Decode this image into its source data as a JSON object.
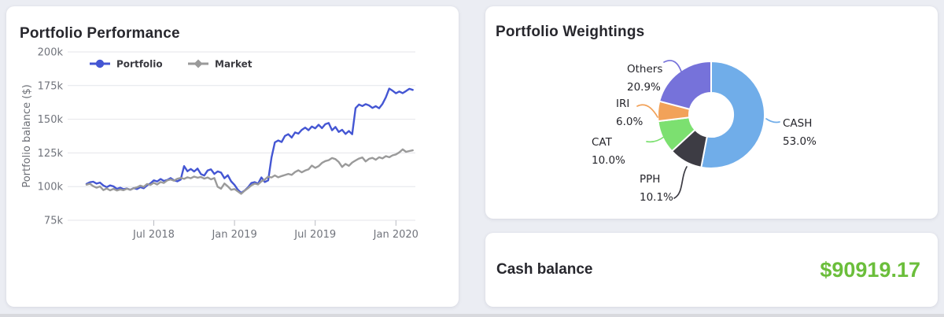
{
  "performance_card": {
    "title": "Portfolio Performance"
  },
  "weightings_card": {
    "title": "Portfolio Weightings"
  },
  "cash_card": {
    "label": "Cash balance",
    "amount": "$90919.17",
    "amount_color": "#6bbe3b"
  },
  "chart_data": [
    {
      "type": "line",
      "title": "Portfolio Performance",
      "ylabel": "Portfolio balance ($)",
      "ylim_k": [
        75,
        200
      ],
      "grid": true,
      "legend_position": "top-left",
      "yticks": [
        {
          "v": 75,
          "label": "75k"
        },
        {
          "v": 100,
          "label": "100k"
        },
        {
          "v": 125,
          "label": "125k"
        },
        {
          "v": 150,
          "label": "150k"
        },
        {
          "v": 175,
          "label": "175k"
        },
        {
          "v": 200,
          "label": "200k"
        }
      ],
      "xticks": [
        {
          "index": 20,
          "label": "Jul 2018"
        },
        {
          "index": 44,
          "label": "Jan 2019"
        },
        {
          "index": 68,
          "label": "Jul 2019"
        },
        {
          "index": 92,
          "label": "Jan 2020"
        }
      ],
      "series": [
        {
          "name": "Portfolio",
          "color": "#4456d3",
          "marker": "circle",
          "values_k": [
            102.0,
            103.2,
            103.6,
            102.2,
            103.0,
            100.8,
            99.6,
            100.9,
            100.2,
            98.3,
            99.2,
            98.1,
            98.6,
            97.6,
            98.9,
            98.2,
            99.6,
            98.8,
            100.9,
            102.4,
            104.6,
            103.8,
            105.6,
            104.2,
            104.9,
            106.3,
            104.7,
            103.9,
            105.2,
            115.2,
            111.4,
            113.1,
            111.2,
            113.4,
            109.3,
            108.2,
            111.9,
            112.8,
            109.4,
            111.3,
            110.4,
            106.2,
            108.4,
            103.9,
            101.2,
            97.6,
            95.3,
            97.1,
            99.4,
            102.6,
            103.3,
            102.1,
            106.8,
            103.4,
            104.6,
            121.5,
            132.8,
            134.2,
            133.1,
            137.6,
            138.9,
            136.4,
            140.2,
            139.3,
            142.1,
            143.8,
            141.9,
            144.6,
            143.2,
            145.9,
            143.4,
            146.3,
            147.2,
            141.8,
            144.3,
            140.6,
            142.2,
            139.1,
            141.3,
            138.9,
            158.3,
            160.9,
            159.8,
            161.2,
            160.3,
            158.4,
            159.7,
            158.2,
            161.4,
            166.3,
            172.8,
            171.2,
            169.3,
            170.6,
            169.4,
            170.9,
            172.6,
            171.8
          ]
        },
        {
          "name": "Market",
          "color": "#9a9a9a",
          "marker": "diamond",
          "values_k": [
            101.4,
            102.1,
            100.3,
            99.2,
            100.1,
            97.4,
            98.6,
            97.2,
            98.3,
            97.1,
            97.9,
            97.3,
            98.4,
            97.6,
            98.8,
            99.4,
            100.7,
            99.8,
            101.9,
            101.2,
            102.8,
            101.6,
            103.4,
            102.7,
            104.6,
            105.3,
            104.4,
            105.8,
            106.4,
            105.7,
            106.9,
            106.2,
            107.4,
            106.6,
            107.1,
            105.9,
            106.8,
            105.4,
            106.3,
            99.8,
            98.4,
            102.3,
            100.2,
            97.6,
            98.2,
            96.4,
            94.6,
            96.9,
            98.8,
            100.9,
            102.2,
            101.6,
            103.9,
            105.2,
            107.4,
            106.8,
            108.3,
            106.9,
            107.8,
            108.6,
            109.4,
            108.7,
            110.8,
            112.1,
            110.6,
            111.9,
            112.8,
            115.6,
            113.9,
            115.2,
            117.6,
            118.9,
            119.6,
            121.2,
            120.4,
            118.3,
            114.6,
            116.8,
            115.4,
            117.9,
            119.4,
            120.8,
            121.6,
            118.7,
            120.6,
            121.3,
            119.9,
            121.8,
            120.9,
            122.6,
            121.8,
            123.2,
            123.9,
            125.4,
            127.6,
            125.8,
            126.4,
            126.9
          ]
        }
      ]
    },
    {
      "type": "pie",
      "donut": true,
      "title": "Portfolio Weightings",
      "slices": [
        {
          "label": "CASH",
          "value": 53.0,
          "display": "53.0%",
          "color": "#70ade9"
        },
        {
          "label": "PPH",
          "value": 10.1,
          "display": "10.1%",
          "color": "#3d3c44"
        },
        {
          "label": "CAT",
          "value": 10.0,
          "display": "10.0%",
          "color": "#7ce070"
        },
        {
          "label": "IRI",
          "value": 6.0,
          "display": "6.0%",
          "color": "#f2a259"
        },
        {
          "label": "Others",
          "value": 20.9,
          "display": "20.9%",
          "color": "#7672da"
        }
      ]
    }
  ]
}
